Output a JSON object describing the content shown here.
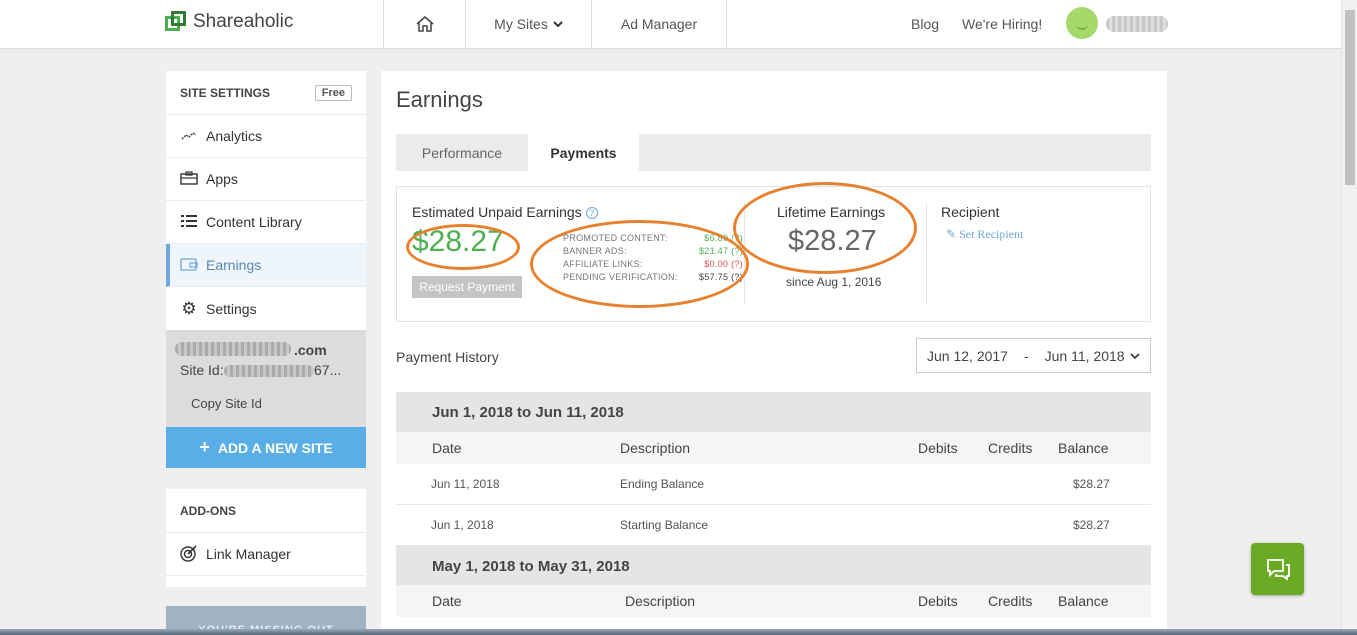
{
  "header": {
    "logo_text": "Shareaholic",
    "nav_sites": "My Sites",
    "nav_ad_manager": "Ad Manager",
    "nav_blog": "Blog",
    "nav_hiring": "We're Hiring!"
  },
  "sidebar": {
    "section_title": "SITE SETTINGS",
    "plan_badge": "Free",
    "items": [
      {
        "label": "Analytics",
        "icon": "analytics-icon"
      },
      {
        "label": "Apps",
        "icon": "briefcase-icon"
      },
      {
        "label": "Content Library",
        "icon": "list-icon"
      },
      {
        "label": "Earnings",
        "icon": "wallet-icon"
      },
      {
        "label": "Settings",
        "icon": "gear-icon"
      }
    ],
    "site_domain_suffix": ".com",
    "site_id_label": "Site Id:",
    "site_id_tail": "67...",
    "copy_site_id": "Copy Site Id",
    "add_site": "ADD A NEW SITE",
    "addons_title": "ADD-ONS",
    "addons_items": [
      {
        "label": "Link Manager",
        "icon": "target-icon"
      }
    ],
    "promo_text": "YOU'RE MISSING OUT"
  },
  "main": {
    "title": "Earnings",
    "tabs": [
      {
        "label": "Performance"
      },
      {
        "label": "Payments"
      }
    ],
    "unpaid_label": "Estimated Unpaid Earnings",
    "unpaid_amount": "$28.27",
    "request_payment": "Request Payment",
    "breakdown": [
      {
        "label": "PROMOTED CONTENT:",
        "value": "$6.80 (?)",
        "color": "#4caf50"
      },
      {
        "label": "BANNER ADS:",
        "value": "$21.47 (?)",
        "color": "#4caf50"
      },
      {
        "label": "AFFILIATE LINKS:",
        "value": "$0.00 (?)",
        "color": "#e05050"
      },
      {
        "label": "PENDING VERIFICATION:",
        "value": "$57.75 (?)",
        "color": "#444444"
      }
    ],
    "lifetime_label": "Lifetime Earnings",
    "lifetime_amount": "$28.27",
    "lifetime_since": "since Aug 1, 2016",
    "recipient_label": "Recipient",
    "set_recipient": "Set Recipient",
    "history_title": "Payment History",
    "date_from": "Jun 12, 2017",
    "date_sep": "-",
    "date_to": "Jun 11, 2018",
    "columns": [
      "Date",
      "Description",
      "Debits",
      "Credits",
      "Balance"
    ],
    "periods": [
      {
        "title": "Jun 1, 2018 to Jun 11, 2018",
        "rows": [
          {
            "date": "Jun 11, 2018",
            "description": "Ending Balance",
            "debits": "",
            "credits": "",
            "balance": "$28.27"
          },
          {
            "date": "Jun 1, 2018",
            "description": "Starting Balance",
            "debits": "",
            "credits": "",
            "balance": "$28.27"
          }
        ]
      },
      {
        "title": "May 1, 2018 to May 31, 2018",
        "rows": []
      }
    ]
  },
  "colors": {
    "accent_green": "#4caf50",
    "accent_blue": "#5aaee8",
    "annotation_orange": "#e8802e",
    "chat_green": "#6aaa24"
  }
}
